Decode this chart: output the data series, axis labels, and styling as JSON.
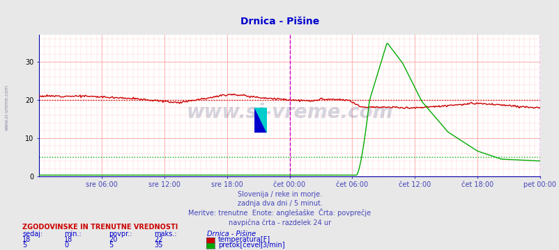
{
  "title": "Drnica - Pišine",
  "title_color": "#0000cc",
  "bg_color": "#e8e8e8",
  "plot_bg_color": "#ffffff",
  "grid_color": "#ffaaaa",
  "grid_minor_color": "#ffcccc",
  "xlabel_color": "#4444bb",
  "ylabel_color": "#000000",
  "xlim": [
    0,
    576
  ],
  "ylim": [
    0,
    37
  ],
  "yticks": [
    0,
    10,
    20,
    30
  ],
  "xtick_labels": [
    "sre 06:00",
    "sre 12:00",
    "sre 18:00",
    "čet 00:00",
    "čet 06:00",
    "čet 12:00",
    "čet 18:00",
    "pet 00:00"
  ],
  "xtick_positions": [
    72,
    144,
    216,
    288,
    360,
    432,
    504,
    576
  ],
  "temp_color": "#cc0000",
  "temp_avg": 20,
  "flow_color": "#00aa00",
  "flow_avg": 5,
  "vline_color": "#cc00cc",
  "vline_positions": [
    288,
    576
  ],
  "watermark": "www.si-vreme.com",
  "watermark_color": "#333366",
  "subtitle1": "Slovenija / reke in morje.",
  "subtitle2": "zadnja dva dni / 5 minut.",
  "subtitle3": "Meritve: trenutne  Enote: anglešaške  Črta: povprečje",
  "subtitle4": "navpična črta - razdelek 24 ur",
  "subtitle_color": "#4444bb",
  "table_header": "ZGODOVINSKE IN TRENUTNE VREDNOSTI",
  "table_header_color": "#cc0000",
  "col_headers": [
    "sedaj:",
    "min.:",
    "povpr.:",
    "maks.:"
  ],
  "col_header_color": "#0000cc",
  "temp_row": [
    18,
    18,
    20,
    22
  ],
  "flow_row": [
    5,
    0,
    5,
    35
  ],
  "station_label": "Drnica - Pišine",
  "temp_label": "temperatura[F]",
  "flow_label": "pretok[čevelj3/min]",
  "table_text_color": "#0000cc",
  "left_watermark": "www.si-vreme.com"
}
